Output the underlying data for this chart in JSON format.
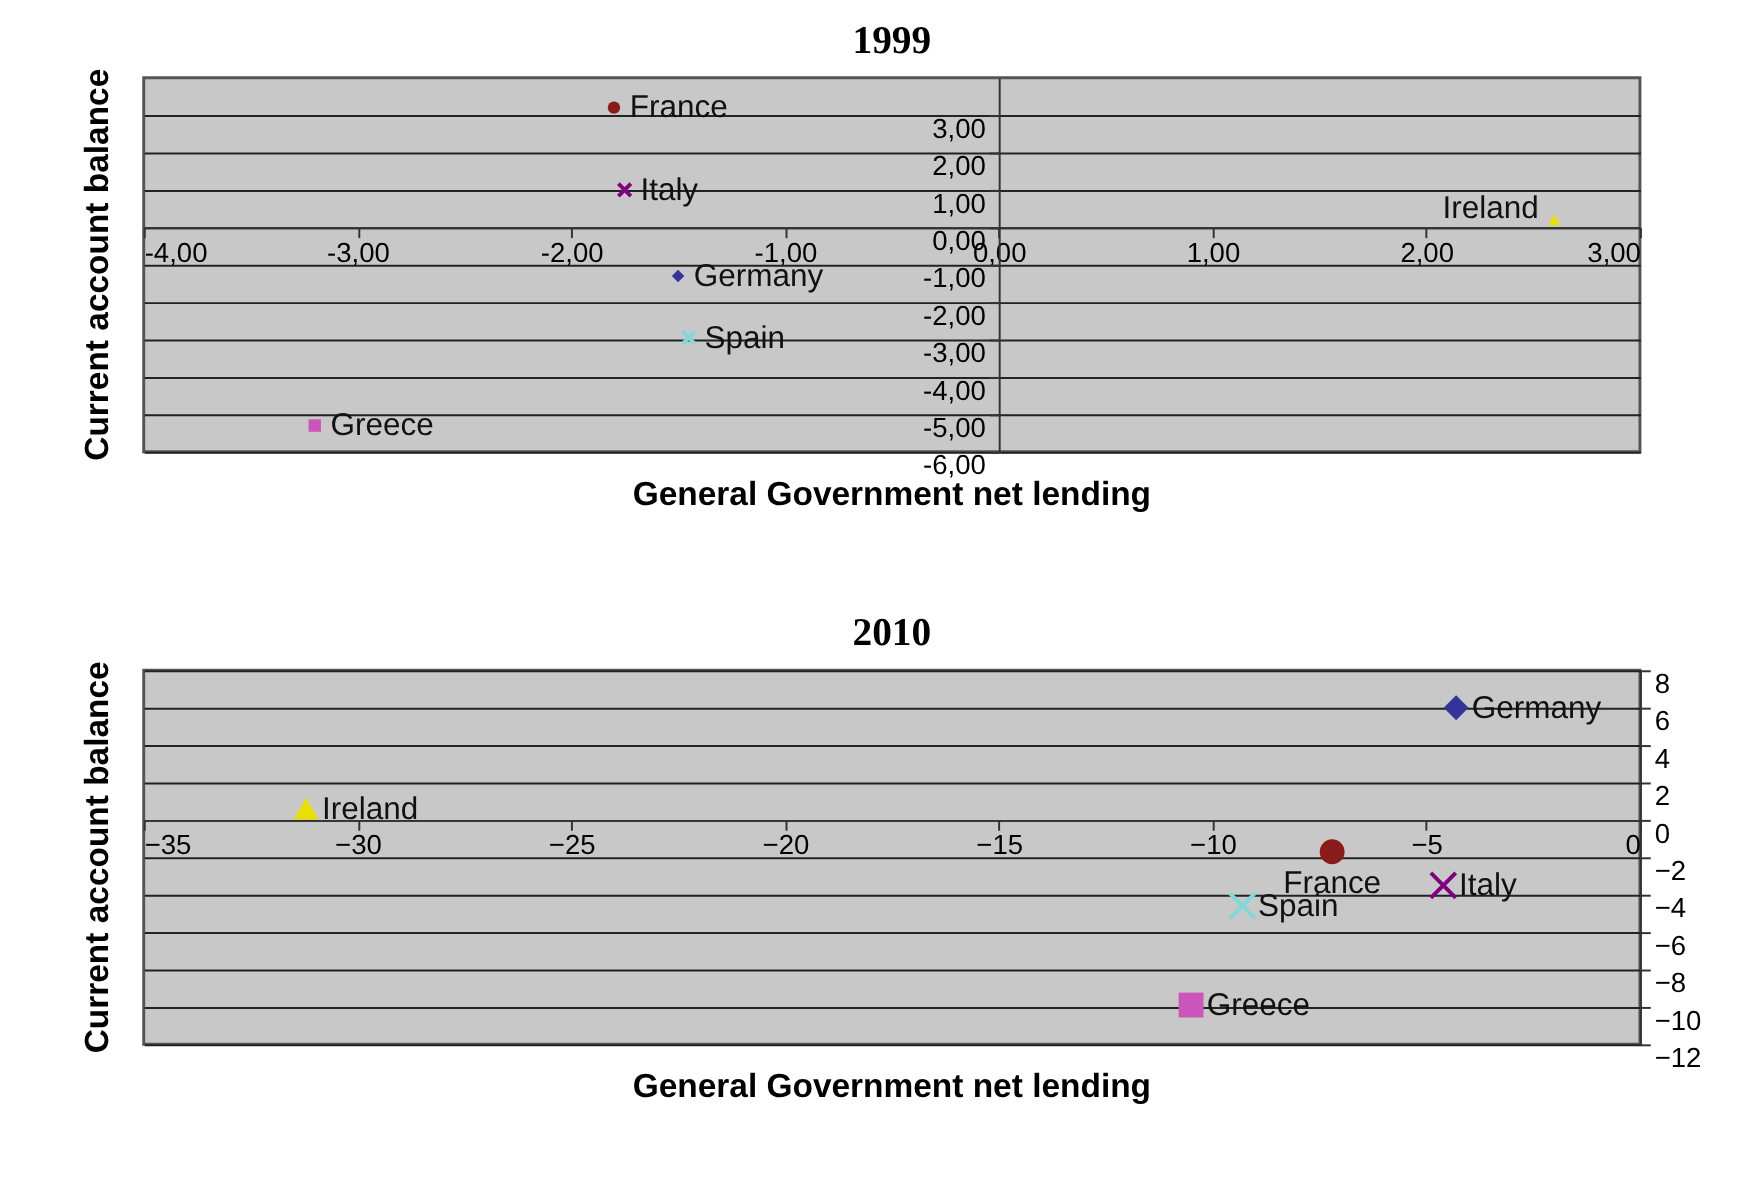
{
  "chart_data": [
    {
      "type": "scatter",
      "title": "1999",
      "xlabel": "General Government net lending",
      "ylabel": "Current account balance",
      "xlim": [
        -4,
        3
      ],
      "ylim": [
        -6,
        4
      ],
      "xticks": [
        {
          "value": -4,
          "label": "-4,00"
        },
        {
          "value": -3,
          "label": "-3,00"
        },
        {
          "value": -2,
          "label": "-2,00"
        },
        {
          "value": -1,
          "label": "-1,00"
        },
        {
          "value": 0,
          "label": "0,00"
        },
        {
          "value": 1,
          "label": "1,00"
        },
        {
          "value": 2,
          "label": "2,00"
        },
        {
          "value": 3,
          "label": "3,00"
        }
      ],
      "yticks": [
        {
          "value": -6,
          "label": "-6,00"
        },
        {
          "value": -5,
          "label": "-5,00"
        },
        {
          "value": -4,
          "label": "-4,00"
        },
        {
          "value": -3,
          "label": "-3,00"
        },
        {
          "value": -2,
          "label": "-2,00"
        },
        {
          "value": -1,
          "label": "-1,00"
        },
        {
          "value": 0,
          "label": "0,00"
        },
        {
          "value": 1,
          "label": "1,00"
        },
        {
          "value": 2,
          "label": "2,00"
        },
        {
          "value": 3,
          "label": "3,00"
        }
      ],
      "grid": "y",
      "series": [
        {
          "name": "France",
          "color": "#8b1a1a",
          "marker": "circle",
          "x": [
            -1.8
          ],
          "values": [
            3.2
          ]
        },
        {
          "name": "Italy",
          "color": "#800080",
          "marker": "cross",
          "x": [
            -1.75
          ],
          "values": [
            1.0
          ]
        },
        {
          "name": "Ireland",
          "color": "#e8e000",
          "marker": "triangle",
          "x": [
            2.6
          ],
          "values": [
            0.2
          ]
        },
        {
          "name": "Germany",
          "color": "#333399",
          "marker": "diamond",
          "x": [
            -1.5
          ],
          "values": [
            -1.3
          ]
        },
        {
          "name": "Spain",
          "color": "#80d8d8",
          "marker": "cross",
          "x": [
            -1.45
          ],
          "values": [
            -2.95
          ]
        },
        {
          "name": "Greece",
          "color": "#cc55bb",
          "marker": "square",
          "x": [
            -3.2
          ],
          "values": [
            -5.3
          ]
        }
      ]
    },
    {
      "type": "scatter",
      "title": "2010",
      "xlabel": "General Government net lending",
      "ylabel": "Current account balance",
      "xlim": [
        -35,
        0
      ],
      "ylim": [
        -12,
        8
      ],
      "xticks": [
        -35,
        -30,
        -25,
        -20,
        -15,
        -10,
        -5,
        0
      ],
      "yticks": [
        -12,
        -10,
        -8,
        -6,
        -4,
        -2,
        0,
        2,
        4,
        6,
        8
      ],
      "grid": "y",
      "series": [
        {
          "name": "Germany",
          "color": "#333399",
          "marker": "diamond",
          "x": [
            -4.3
          ],
          "values": [
            6.0
          ]
        },
        {
          "name": "Ireland",
          "color": "#e8e000",
          "marker": "triangle",
          "x": [
            -31.2
          ],
          "values": [
            0.6
          ]
        },
        {
          "name": "France",
          "color": "#8b1a1a",
          "marker": "circle",
          "x": [
            -7.2
          ],
          "values": [
            -1.7
          ]
        },
        {
          "name": "Italy",
          "color": "#800080",
          "marker": "cross",
          "x": [
            -4.6
          ],
          "values": [
            -3.5
          ]
        },
        {
          "name": "Spain",
          "color": "#80d8d8",
          "marker": "cross",
          "x": [
            -9.3
          ],
          "values": [
            -4.6
          ]
        },
        {
          "name": "Greece",
          "color": "#cc55bb",
          "marker": "square",
          "x": [
            -10.5
          ],
          "values": [
            -9.9
          ]
        }
      ]
    }
  ]
}
